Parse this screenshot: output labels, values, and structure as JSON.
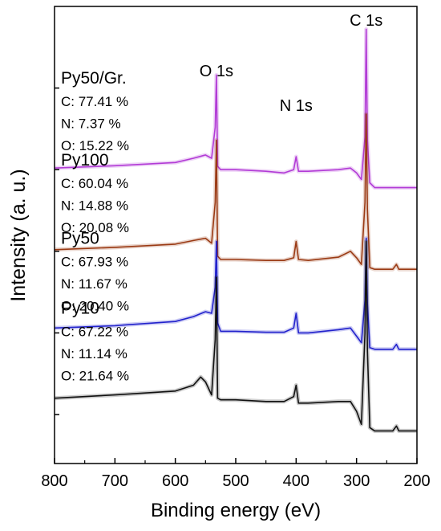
{
  "chart_data": {
    "type": "line",
    "xlabel": "Binding energy (eV)",
    "ylabel": "Intensity (a. u.)",
    "xlim": [
      800,
      200
    ],
    "x_direction": "reversed",
    "x_ticks": [
      800,
      700,
      600,
      500,
      400,
      300,
      200
    ],
    "y_tick_labels_shown": false,
    "grid": false,
    "legend": "none",
    "peak_annotations": [
      {
        "text": "O 1s",
        "x": 532
      },
      {
        "text": "N 1s",
        "x": 400
      },
      {
        "text": "C 1s",
        "x": 284
      }
    ],
    "series": [
      {
        "name": "Py50/Gr.",
        "color": "#b23bd6",
        "composition": [
          "C: 77.41 %",
          "N: 7.37 %",
          "O: 15.22 %"
        ],
        "x": [
          800,
          700,
          600,
          570,
          550,
          540,
          534,
          532,
          530,
          525,
          500,
          450,
          420,
          404,
          400,
          396,
          380,
          330,
          310,
          300,
          292,
          286,
          284,
          282,
          278,
          270,
          240,
          230,
          200
        ],
        "y": [
          7.55,
          7.62,
          7.72,
          7.85,
          7.95,
          7.85,
          8.8,
          10.4,
          7.6,
          7.5,
          7.5,
          7.45,
          7.4,
          7.5,
          7.9,
          7.45,
          7.45,
          7.5,
          7.55,
          7.4,
          7.2,
          8.5,
          11.8,
          8.4,
          7.1,
          6.95,
          6.95,
          6.95,
          6.95
        ]
      },
      {
        "name": "Py100",
        "color": "#9a3a14",
        "composition": [
          "C: 60.04 %",
          "N: 14.88 %",
          "O: 20.08 %"
        ],
        "x": [
          800,
          700,
          600,
          570,
          550,
          540,
          534,
          532,
          530,
          525,
          500,
          450,
          420,
          404,
          400,
          396,
          380,
          330,
          310,
          300,
          292,
          286,
          284,
          282,
          278,
          270,
          240,
          234,
          230,
          200
        ],
        "y": [
          5.05,
          5.12,
          5.22,
          5.33,
          5.4,
          5.25,
          6.5,
          8.4,
          4.85,
          4.75,
          4.75,
          4.72,
          4.72,
          4.8,
          5.3,
          4.75,
          4.72,
          4.82,
          5.0,
          4.8,
          4.6,
          6.5,
          9.2,
          6.3,
          4.5,
          4.45,
          4.45,
          4.6,
          4.45,
          4.45
        ]
      },
      {
        "name": "Py50",
        "color": "#2222cc",
        "composition": [
          "C: 67.93 %",
          "N: 11.67 %",
          "O: 20.40 %"
        ],
        "x": [
          800,
          700,
          680,
          600,
          570,
          550,
          540,
          534,
          532,
          530,
          525,
          500,
          450,
          420,
          404,
          400,
          396,
          380,
          330,
          310,
          300,
          292,
          286,
          284,
          282,
          278,
          270,
          240,
          234,
          230,
          200
        ],
        "y": [
          2.65,
          2.72,
          2.75,
          2.85,
          3.0,
          3.15,
          3.1,
          3.9,
          5.3,
          2.8,
          2.55,
          2.55,
          2.52,
          2.52,
          2.65,
          3.1,
          2.5,
          2.5,
          2.6,
          2.65,
          2.4,
          2.2,
          3.5,
          5.4,
          3.4,
          2.05,
          2.0,
          2.0,
          2.15,
          2.0,
          2.0
        ]
      },
      {
        "name": "Py10",
        "color": "#111111",
        "composition": [
          "C: 67.22 %",
          "N: 11.14 %",
          "O: 21.64 %"
        ],
        "x": [
          800,
          700,
          600,
          570,
          558,
          550,
          540,
          534,
          532,
          530,
          525,
          500,
          450,
          420,
          404,
          400,
          396,
          380,
          330,
          310,
          300,
          292,
          286,
          284,
          282,
          278,
          270,
          240,
          234,
          230,
          200
        ],
        "y": [
          0.5,
          0.6,
          0.72,
          0.9,
          1.15,
          1.0,
          0.6,
          2.3,
          4.2,
          0.5,
          0.45,
          0.45,
          0.4,
          0.4,
          0.55,
          0.9,
          0.35,
          0.35,
          0.4,
          0.4,
          0.1,
          -0.3,
          2.5,
          5.3,
          2.0,
          -0.4,
          -0.5,
          -0.5,
          -0.35,
          -0.5,
          -0.5
        ]
      }
    ]
  }
}
